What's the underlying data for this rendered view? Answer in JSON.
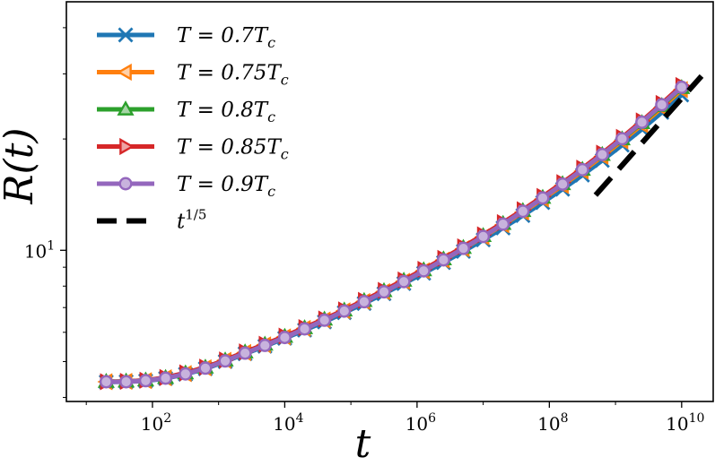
{
  "chart_data": {
    "type": "line",
    "x_scale": "log",
    "y_scale": "log",
    "xlabel": "t",
    "ylabel": "R(t)",
    "xlim": [
      5.0,
      30000000000.0
    ],
    "ylim": [
      3.9,
      47.0
    ],
    "x_ticks": [
      {
        "value": 100,
        "label": "10",
        "exp": "2"
      },
      {
        "value": 10000,
        "label": "10",
        "exp": "4"
      },
      {
        "value": 1000000,
        "label": "10",
        "exp": "6"
      },
      {
        "value": 100000000,
        "label": "10",
        "exp": "8"
      },
      {
        "value": 10000000000,
        "label": "10",
        "exp": "10"
      }
    ],
    "y_ticks": [
      {
        "value": 10,
        "label": "10",
        "exp": "1"
      }
    ],
    "grid": false,
    "legend_position": "top-left",
    "x": [
      20,
      40,
      79,
      158,
      316,
      631,
      1259,
      2512,
      5012,
      10000,
      19953,
      39811,
      79433,
      158489,
      316228,
      630957,
      1258925,
      2511886,
      5011872,
      10000000,
      19952623,
      39810717,
      79432823,
      158489319,
      316227766,
      630957344,
      1258925412,
      2511886432,
      5011872336,
      10000000000
    ],
    "series": [
      {
        "name": "T = 0.7T_c",
        "legend_label": "T = 0.7T",
        "legend_sub": "c",
        "color": "#1f77b4",
        "marker": "x",
        "values": [
          4.4,
          4.41,
          4.43,
          4.5,
          4.62,
          4.78,
          5.0,
          5.25,
          5.5,
          5.78,
          6.08,
          6.4,
          6.78,
          7.18,
          7.63,
          8.13,
          8.67,
          9.26,
          9.93,
          10.67,
          11.49,
          12.42,
          13.46,
          14.63,
          15.97,
          17.5,
          19.25,
          21.25,
          23.6,
          26.3
        ]
      },
      {
        "name": "T = 0.75T_c",
        "legend_label": "T = 0.75T",
        "legend_sub": "c",
        "color": "#ff7f0e",
        "marker": "triangle-left",
        "values": [
          4.41,
          4.42,
          4.44,
          4.52,
          4.64,
          4.81,
          5.04,
          5.29,
          5.55,
          5.83,
          6.15,
          6.48,
          6.86,
          7.27,
          7.73,
          8.24,
          8.8,
          9.41,
          10.1,
          10.87,
          11.72,
          12.68,
          13.76,
          14.98,
          16.37,
          17.95,
          19.77,
          21.85,
          24.3,
          27.2
        ]
      },
      {
        "name": "T = 0.8T_c",
        "legend_label": "T = 0.8T",
        "legend_sub": "c",
        "color": "#2ca02c",
        "marker": "triangle-up",
        "values": [
          4.41,
          4.42,
          4.45,
          4.52,
          4.65,
          4.82,
          5.04,
          5.3,
          5.56,
          5.84,
          6.16,
          6.5,
          6.88,
          7.3,
          7.76,
          8.28,
          8.84,
          9.46,
          10.16,
          10.94,
          11.8,
          12.78,
          13.88,
          15.11,
          16.52,
          18.13,
          19.98,
          22.1,
          24.6,
          27.5
        ]
      },
      {
        "name": "T = 0.85T_c",
        "legend_label": "T = 0.85T",
        "legend_sub": "c",
        "color": "#d62728",
        "marker": "triangle-right",
        "values": [
          4.41,
          4.42,
          4.45,
          4.53,
          4.66,
          4.83,
          5.05,
          5.31,
          5.57,
          5.86,
          6.18,
          6.52,
          6.9,
          7.32,
          7.79,
          8.31,
          8.88,
          9.51,
          10.22,
          11.01,
          11.88,
          12.87,
          13.98,
          15.24,
          16.67,
          18.31,
          20.2,
          22.38,
          24.95,
          27.9
        ]
      },
      {
        "name": "T = 0.9T_c",
        "legend_label": "T = 0.9T",
        "legend_sub": "c",
        "color": "#9467bd",
        "marker": "circle",
        "values": [
          4.41,
          4.41,
          4.44,
          4.51,
          4.63,
          4.8,
          5.02,
          5.27,
          5.53,
          5.81,
          6.13,
          6.47,
          6.85,
          7.26,
          7.72,
          8.23,
          8.8,
          9.42,
          10.12,
          10.9,
          11.77,
          12.75,
          13.85,
          15.1,
          16.52,
          18.15,
          20.03,
          22.2,
          24.75,
          27.6
        ]
      }
    ],
    "reference_line": {
      "name": "t^(1/5)",
      "legend_label": "t",
      "legend_sup": "1/5",
      "color": "#000000",
      "style": "dashed",
      "exponent": 0.2,
      "x": [
        500000000,
        20000000000
      ],
      "values": [
        14.1,
        29.6
      ]
    }
  }
}
